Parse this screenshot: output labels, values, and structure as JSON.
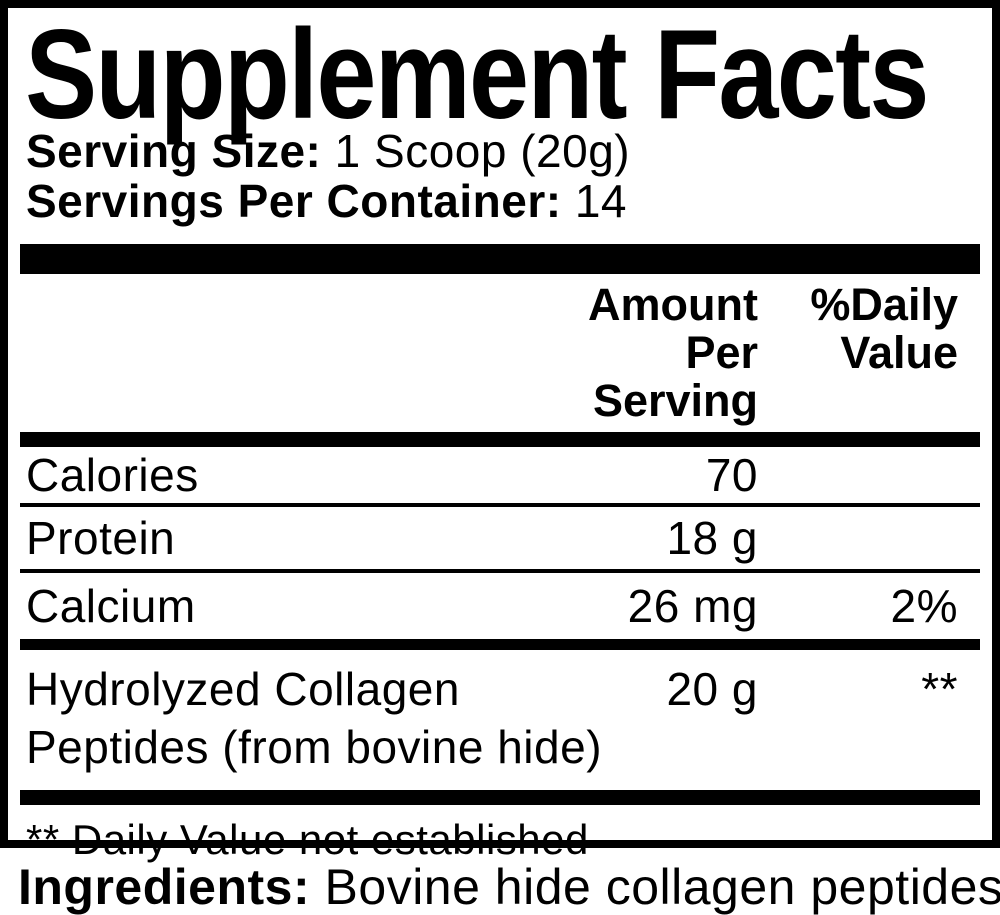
{
  "title": "Supplement Facts",
  "serving": {
    "size_label": "Serving Size:",
    "size_value": " 1 Scoop (20g)",
    "per_container_label": "Servings Per Container:",
    "per_container_value": " 14"
  },
  "header": {
    "amount_line1": "Amount Per",
    "amount_line2": "Serving",
    "dv_line1": "%Daily",
    "dv_line2": "Value"
  },
  "rows": [
    {
      "name": "Calories",
      "amount": "70",
      "dv": ""
    },
    {
      "name": "Protein",
      "amount": "18 g",
      "dv": ""
    },
    {
      "name": "Calcium",
      "amount": "26 mg",
      "dv": "2%"
    },
    {
      "name": "Hydrolyzed Collagen",
      "name_line2": "Peptides (from bovine hide)",
      "amount": "20 g",
      "dv": "**"
    }
  ],
  "footnote": "** Daily Value not established",
  "ingredients": {
    "label": "Ingredients:",
    "value": " Bovine hide collagen peptides."
  },
  "colors": {
    "ink": "#000000",
    "background": "#ffffff"
  }
}
